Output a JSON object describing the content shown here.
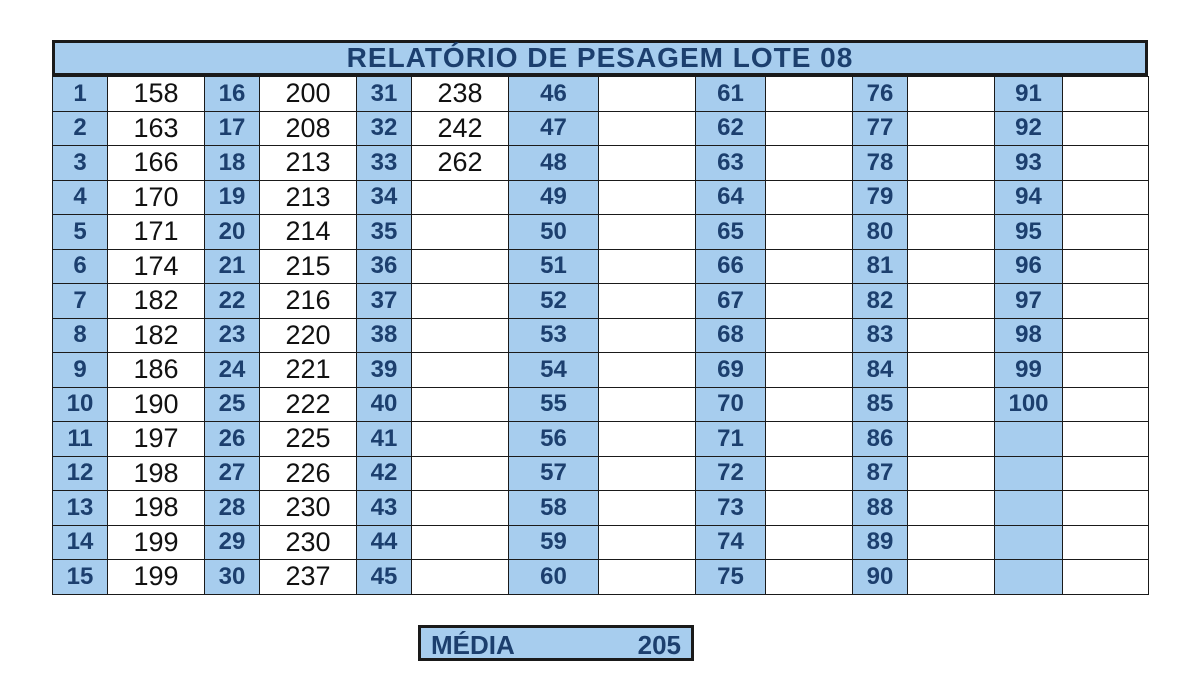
{
  "title": "RELATÓRIO DE PESAGEM LOTE 08",
  "colors": {
    "header_blue": "#a7cdee",
    "text_dark_blue": "#1c3f6e",
    "border": "#1a1a1a"
  },
  "columns": [
    {
      "values": [
        "158",
        "163",
        "166",
        "170",
        "171",
        "174",
        "182",
        "182",
        "186",
        "190",
        "197",
        "198",
        "198",
        "199",
        "199"
      ]
    },
    {
      "values": [
        "200",
        "208",
        "213",
        "213",
        "214",
        "215",
        "216",
        "220",
        "221",
        "222",
        "225",
        "226",
        "230",
        "230",
        "237"
      ]
    },
    {
      "values": [
        "238",
        "242",
        "262",
        "",
        "",
        "",
        "",
        "",
        "",
        "",
        "",
        "",
        "",
        "",
        ""
      ]
    },
    {
      "values": [
        "",
        "",
        "",
        "",
        "",
        "",
        "",
        "",
        "",
        "",
        "",
        "",
        "",
        "",
        ""
      ]
    },
    {
      "values": [
        "",
        "",
        "",
        "",
        "",
        "",
        "",
        "",
        "",
        "",
        "",
        "",
        "",
        "",
        ""
      ]
    },
    {
      "values": [
        "",
        "",
        "",
        "",
        "",
        "",
        "",
        "",
        "",
        "",
        "",
        "",
        "",
        "",
        ""
      ]
    },
    {
      "values": [
        "",
        "",
        "",
        "",
        "",
        "",
        "",
        "",
        "",
        "",
        "",
        "",
        "",
        "",
        ""
      ]
    }
  ],
  "column_indices": [
    [
      "1",
      "2",
      "3",
      "4",
      "5",
      "6",
      "7",
      "8",
      "9",
      "10",
      "11",
      "12",
      "13",
      "14",
      "15"
    ],
    [
      "16",
      "17",
      "18",
      "19",
      "20",
      "21",
      "22",
      "23",
      "24",
      "25",
      "26",
      "27",
      "28",
      "29",
      "30"
    ],
    [
      "31",
      "32",
      "33",
      "34",
      "35",
      "36",
      "37",
      "38",
      "39",
      "40",
      "41",
      "42",
      "43",
      "44",
      "45"
    ],
    [
      "46",
      "47",
      "48",
      "49",
      "50",
      "51",
      "52",
      "53",
      "54",
      "55",
      "56",
      "57",
      "58",
      "59",
      "60"
    ],
    [
      "61",
      "62",
      "63",
      "64",
      "65",
      "66",
      "67",
      "68",
      "69",
      "70",
      "71",
      "72",
      "73",
      "74",
      "75"
    ],
    [
      "76",
      "77",
      "78",
      "79",
      "80",
      "81",
      "82",
      "83",
      "84",
      "85",
      "86",
      "87",
      "88",
      "89",
      "90"
    ],
    [
      "91",
      "92",
      "93",
      "94",
      "95",
      "96",
      "97",
      "98",
      "99",
      "100",
      "",
      "",
      "",
      "",
      ""
    ]
  ],
  "media": {
    "label": "MÉDIA",
    "value": "205"
  }
}
